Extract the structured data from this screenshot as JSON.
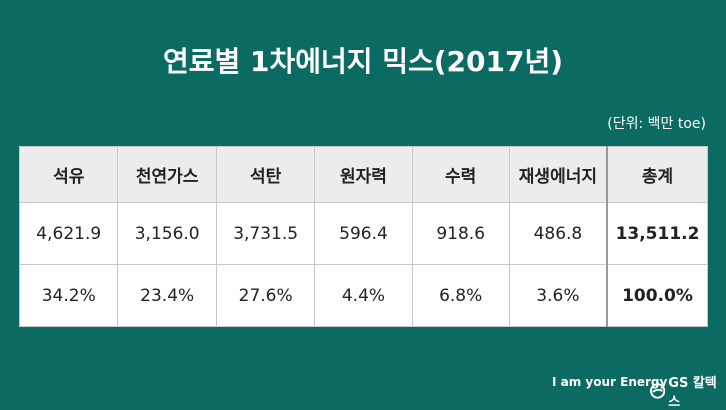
{
  "title": "연료별 1차에너지 믹스(2017년)",
  "unit": "(단위: 백만 toe)",
  "chart_data": {
    "type": "table",
    "title": "연료별 1차에너지 믹스(2017년)",
    "columns": [
      "석유",
      "천연가스",
      "석탄",
      "원자력",
      "수력",
      "재생에너지",
      "총계"
    ],
    "rows": [
      [
        "4,621.9",
        "3,156.0",
        "3,731.5",
        "596.4",
        "918.6",
        "486.8",
        "13,511.2"
      ],
      [
        "34.2%",
        "23.4%",
        "27.6%",
        "4.4%",
        "6.8%",
        "3.6%",
        "100.0%"
      ]
    ]
  },
  "footer": {
    "slogan": "I am your Energy",
    "logo": "GS 칼텍스"
  },
  "colors": {
    "background": "#0b6b63",
    "header": "#ececec"
  }
}
